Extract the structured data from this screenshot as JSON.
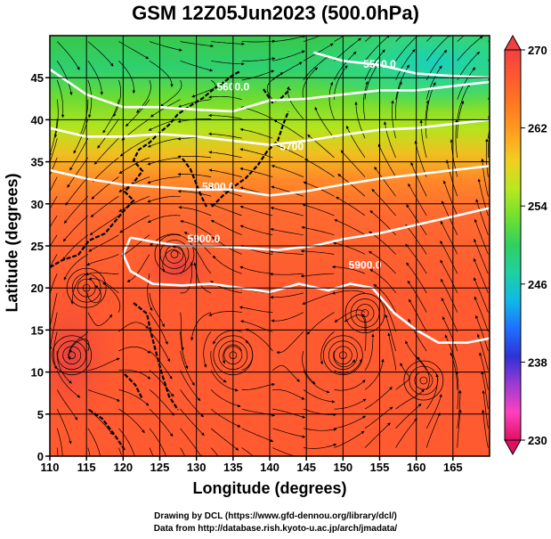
{
  "figure": {
    "title": "GSM 12Z05Jun2023 (500.0hPa)",
    "xlabel": "Longitude (degrees)",
    "ylabel": "Latitude  (degrees)",
    "credit_line1": "Drawing by DCL (https://www.gfd-dennou.org/library/dcl/)",
    "credit_line2": "Data from http://database.rish.kyoto-u.ac.jp/arch/jmadata/"
  },
  "map_data": {
    "type": "heatmap",
    "variable_note": "temperature shading with height contours and wind streamlines",
    "x_ticks": [
      "110",
      "115",
      "120",
      "125",
      "130",
      "135",
      "140",
      "145",
      "150",
      "155",
      "160",
      "165"
    ],
    "y_ticks": [
      "0",
      "5",
      "10",
      "15",
      "20",
      "25",
      "30",
      "35",
      "40",
      "45"
    ],
    "xlim": [
      110,
      170
    ],
    "ylim": [
      0,
      50
    ],
    "colorbar": {
      "ticks": [
        "270",
        "262",
        "254",
        "246",
        "238",
        "230"
      ],
      "range": [
        230,
        270
      ],
      "colors": [
        "#e01060",
        "#ff40c0",
        "#9b3bd1",
        "#3030d8",
        "#1e6fff",
        "#10b8e8",
        "#20d0a0",
        "#30d060",
        "#70e030",
        "#b8e820",
        "#f0d020",
        "#ffa020",
        "#ff7a20",
        "#ff5a30",
        "#f04040"
      ]
    },
    "contour_labels": [
      {
        "text": "5600.0"
      },
      {
        "text": "5500.0"
      },
      {
        "text": "5700"
      },
      {
        "text": "5800.0"
      },
      {
        "text": "5900.0"
      },
      {
        "text": "5900.0"
      }
    ],
    "contour_lines": [
      {
        "value": 5500,
        "points": [
          [
            146,
            48
          ],
          [
            150,
            47
          ],
          [
            155,
            46.5
          ],
          [
            160,
            45.5
          ],
          [
            165,
            45.2
          ],
          [
            170,
            45
          ]
        ]
      },
      {
        "value": 5600,
        "points": [
          [
            110,
            46
          ],
          [
            115,
            43
          ],
          [
            120,
            41.5
          ],
          [
            125,
            41.5
          ],
          [
            130,
            41.2
          ],
          [
            135,
            41
          ],
          [
            140,
            42.3
          ],
          [
            145,
            42.5
          ],
          [
            150,
            43
          ],
          [
            155,
            43.5
          ],
          [
            160,
            43.5
          ],
          [
            165,
            44
          ],
          [
            170,
            44.5
          ]
        ]
      },
      {
        "value": 5700,
        "points": [
          [
            110,
            39
          ],
          [
            115,
            38
          ],
          [
            120,
            38
          ],
          [
            125,
            38.3
          ],
          [
            130,
            38
          ],
          [
            135,
            37.5
          ],
          [
            140,
            37
          ],
          [
            145,
            37.5
          ],
          [
            150,
            38.2
          ],
          [
            155,
            38.8
          ],
          [
            160,
            39
          ],
          [
            165,
            39.5
          ],
          [
            170,
            40
          ]
        ]
      },
      {
        "value": 5800,
        "points": [
          [
            110,
            34
          ],
          [
            115,
            33
          ],
          [
            120,
            32.3
          ],
          [
            125,
            32
          ],
          [
            130,
            31.7
          ],
          [
            135,
            31.7
          ],
          [
            140,
            31
          ],
          [
            145,
            31.5
          ],
          [
            150,
            32.3
          ],
          [
            155,
            33
          ],
          [
            160,
            33.5
          ],
          [
            165,
            34
          ],
          [
            170,
            34.5
          ]
        ]
      },
      {
        "value": 5900,
        "points": [
          [
            121,
            26
          ],
          [
            124,
            25.5
          ],
          [
            128,
            25
          ],
          [
            132,
            25
          ],
          [
            136,
            24.8
          ],
          [
            141,
            24.5
          ],
          [
            146,
            25
          ],
          [
            150,
            25.8
          ],
          [
            155,
            26.5
          ],
          [
            160,
            27.5
          ],
          [
            165,
            28.5
          ],
          [
            170,
            29.5
          ]
        ]
      },
      {
        "value": 5900,
        "points": [
          [
            121,
            26
          ],
          [
            120,
            24
          ],
          [
            121,
            22
          ],
          [
            124,
            20.5
          ],
          [
            128,
            20.3
          ],
          [
            132,
            20.5
          ],
          [
            136,
            20
          ],
          [
            140,
            19.5
          ],
          [
            144,
            20.5
          ],
          [
            148,
            19.7
          ],
          [
            151,
            20.5
          ],
          [
            154,
            20
          ],
          [
            157,
            17
          ],
          [
            160,
            15
          ],
          [
            163,
            13.5
          ],
          [
            167,
            13.5
          ],
          [
            170,
            14
          ]
        ]
      }
    ],
    "vortex_centers": [
      [
        127,
        24
      ],
      [
        115,
        20
      ],
      [
        153,
        17
      ],
      [
        150,
        12
      ],
      [
        161,
        9
      ],
      [
        135,
        12
      ],
      [
        113,
        12
      ]
    ]
  }
}
